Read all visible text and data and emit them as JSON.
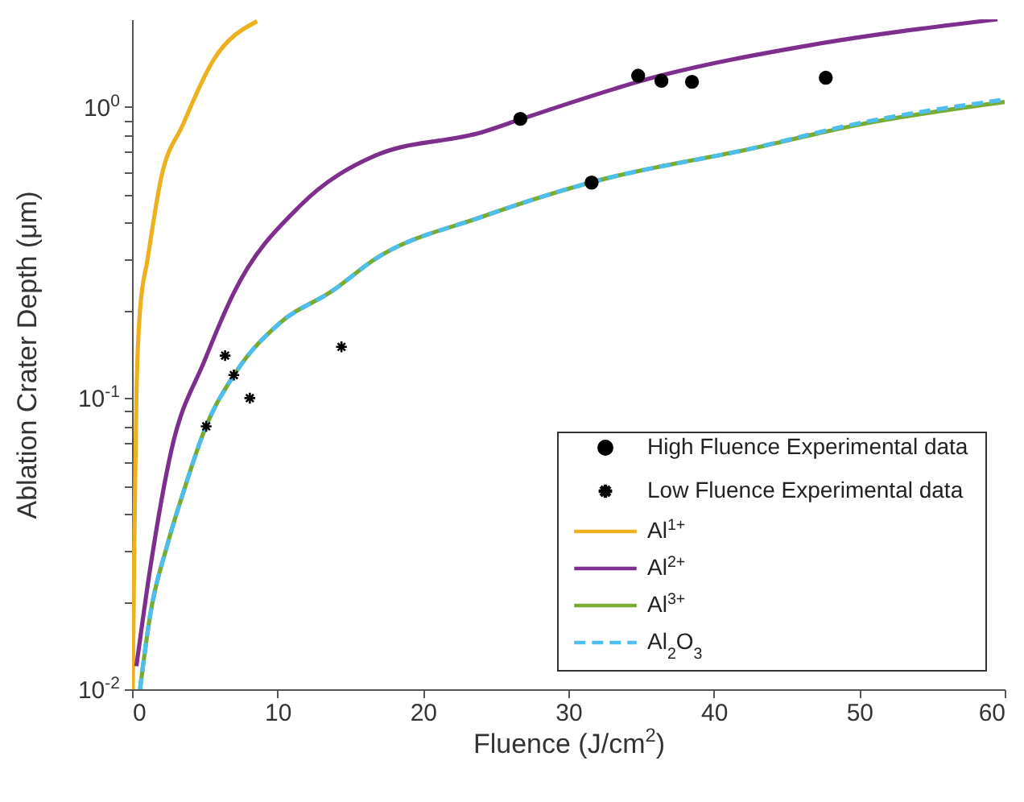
{
  "chart_data": {
    "type": "line",
    "xlabel": "Fluence (J/cm$^{2}$)",
    "ylabel": "Ablation Crater Depth (μm)",
    "xlim": [
      0,
      60
    ],
    "xticks": [
      0,
      10,
      20,
      30,
      40,
      50,
      60
    ],
    "ylim": [
      0.01,
      2
    ],
    "yticks": [
      {
        "value": 0.01,
        "label": "10$^{-2}$"
      },
      {
        "value": 0.02,
        "label": null
      },
      {
        "value": 0.03,
        "label": null
      },
      {
        "value": 0.04,
        "label": null
      },
      {
        "value": 0.05,
        "label": null
      },
      {
        "value": 0.06,
        "label": null
      },
      {
        "value": 0.07,
        "label": null
      },
      {
        "value": 0.08,
        "label": null
      },
      {
        "value": 0.09,
        "label": null
      },
      {
        "value": 0.1,
        "label": "10$^{-1}$"
      },
      {
        "value": 0.2,
        "label": null
      },
      {
        "value": 0.3,
        "label": null
      },
      {
        "value": 0.4,
        "label": null
      },
      {
        "value": 0.5,
        "label": null
      },
      {
        "value": 0.6,
        "label": null
      },
      {
        "value": 0.7,
        "label": null
      },
      {
        "value": 0.8,
        "label": null
      },
      {
        "value": 0.9,
        "label": null
      },
      {
        "value": 1,
        "label": "10$^{0}$"
      }
    ],
    "log": "y",
    "legend": "bottom right",
    "series": [
      {
        "name": "High Fluence Experimental data",
        "type": "scatter",
        "marker": "circle",
        "color": "#000000",
        "x": [
          26.7,
          31.6,
          34.8,
          36.4,
          38.5,
          47.7
        ],
        "values": [
          0.91,
          0.55,
          1.28,
          1.23,
          1.22,
          1.26
        ]
      },
      {
        "name": "Low Fluence Experimental data",
        "type": "scatter",
        "marker": "cross",
        "color": "#000000",
        "x": [
          5.1,
          6.4,
          7.0,
          8.1,
          14.4
        ],
        "values": [
          0.08,
          0.14,
          0.12,
          0.1,
          0.15
        ]
      },
      {
        "name": "Al$^{1+}$",
        "type": "line",
        "color": "#edb120",
        "x": [
          0.05,
          0.15,
          0.3,
          0.55,
          1.07,
          2.0,
          3.5,
          5.6,
          8.6
        ],
        "values": [
          0.01,
          0.03,
          0.1,
          0.2,
          0.3,
          0.57,
          0.87,
          1.45,
          1.97
        ]
      },
      {
        "name": "Al$^{2+}$",
        "type": "line",
        "color": "#7e2f8e",
        "x": [
          0.3,
          1.25,
          2.7,
          5.0,
          7.0,
          11.6,
          16.7,
          24.1,
          26.8,
          36.3,
          46.3,
          59.5
        ],
        "values": [
          0.012,
          0.026,
          0.066,
          0.135,
          0.23,
          0.46,
          0.68,
          0.82,
          0.91,
          1.28,
          1.62,
          2.0
        ]
      },
      {
        "name": "Al$^{3+}$",
        "type": "line",
        "color": "#77ac30",
        "x": [
          0.55,
          1.25,
          2.4,
          3.5,
          5.0,
          7.2,
          10.1,
          13.8,
          16.7,
          24.1,
          31.5,
          42.6,
          50,
          60
        ],
        "values": [
          0.01,
          0.018,
          0.031,
          0.047,
          0.078,
          0.124,
          0.18,
          0.234,
          0.3,
          0.42,
          0.55,
          0.72,
          0.87,
          1.04
        ]
      },
      {
        "name": "Al$_{2}$O$_{3}$",
        "type": "line",
        "line_style": "dashed",
        "color": "#4dbeee",
        "x": [
          0.55,
          1.25,
          2.4,
          3.5,
          5.0,
          7.2,
          10.1,
          13.8,
          16.7,
          24.1,
          31.5,
          42.6,
          50,
          60
        ],
        "values": [
          0.01,
          0.018,
          0.031,
          0.047,
          0.078,
          0.124,
          0.18,
          0.234,
          0.3,
          0.42,
          0.55,
          0.72,
          0.88,
          1.06
        ]
      }
    ]
  }
}
